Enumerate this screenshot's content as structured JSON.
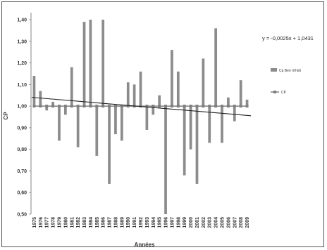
{
  "chart_data": {
    "type": "bar",
    "xlabel": "Années",
    "ylabel": "CP",
    "ylim": [
      0.5,
      1.4
    ],
    "yticks": [
      "0,50",
      "0,60",
      "0,70",
      "0,80",
      "0,90",
      "1,00",
      "1,10",
      "1,20",
      "1,30",
      "1,40"
    ],
    "baseline": 1.0,
    "grid": false,
    "legend_position": "right",
    "categories": [
      "1975",
      "1976",
      "1977",
      "1978",
      "1979",
      "1980",
      "1981",
      "1982",
      "1983",
      "1984",
      "1985",
      "1986",
      "1987",
      "1988",
      "1989",
      "1990",
      "1991",
      "1992",
      "1993",
      "1994",
      "1995",
      "1996",
      "1997",
      "1998",
      "1999",
      "2000",
      "2001",
      "2002",
      "2003",
      "2004",
      "2005",
      "2006",
      "2007",
      "2008",
      "2009"
    ],
    "series": [
      {
        "name": "Cp Ben m'hidi",
        "kind": "bar",
        "color": "#8c8c8c",
        "values": [
          1.14,
          1.07,
          0.98,
          1.02,
          0.84,
          0.96,
          1.18,
          0.81,
          1.39,
          1.4,
          0.77,
          1.4,
          0.64,
          0.87,
          0.84,
          1.11,
          1.1,
          1.16,
          0.89,
          0.96,
          1.05,
          0.5,
          1.26,
          1.16,
          0.68,
          0.8,
          0.64,
          1.22,
          0.83,
          1.36,
          0.83,
          1.04,
          0.93,
          1.12,
          1.03
        ]
      },
      {
        "name": "CP",
        "kind": "line",
        "color": "#7f7f7f",
        "values": [
          1,
          1,
          1,
          1,
          1,
          1,
          1,
          1,
          1,
          1,
          1,
          1,
          1,
          1,
          1,
          1,
          1,
          1,
          1,
          1,
          1,
          1,
          1,
          1,
          1,
          1,
          1,
          1,
          1,
          1,
          1,
          1,
          1,
          1,
          1
        ]
      }
    ],
    "trendline": {
      "slope": -0.0025,
      "intercept": 1.0431,
      "equation": "y = -0,0025x + 1,0431"
    }
  }
}
